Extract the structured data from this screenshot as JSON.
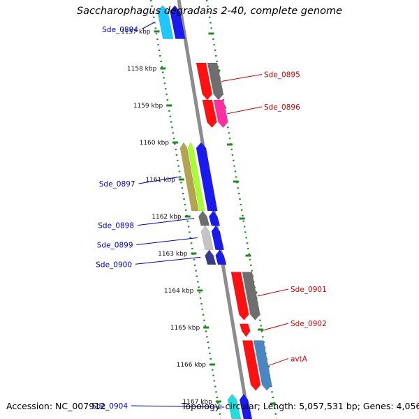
{
  "title": "Saccharophagus degradans 2-40, complete genome",
  "footer": {
    "accession": "Accession: NC_007912",
    "topology": "Topology: circular; Length: 5,057,531 bp; Genes: 4,056"
  },
  "colors": {
    "backbone": "#8c8c8c",
    "tick": "#1f8a1f",
    "forward_label": "#0000cc",
    "reverse_label": "#cc0000"
  },
  "ticks": [
    {
      "label": "1157 kbp",
      "kbp": 1157
    },
    {
      "label": "1158 kbp",
      "kbp": 1158
    },
    {
      "label": "1159 kbp",
      "kbp": 1159
    },
    {
      "label": "1160 kbp",
      "kbp": 1160
    },
    {
      "label": "1161 kbp",
      "kbp": 1161
    },
    {
      "label": "1162 kbp",
      "kbp": 1162
    },
    {
      "label": "1163 kbp",
      "kbp": 1163
    },
    {
      "label": "1164 kbp",
      "kbp": 1164
    },
    {
      "label": "1165 kbp",
      "kbp": 1165
    },
    {
      "label": "1166 kbp",
      "kbp": 1166
    },
    {
      "label": "1167 kbp",
      "kbp": 1167
    }
  ],
  "genes": [
    {
      "name": "Sde_0894",
      "strand": "forward",
      "start_kbp": 1156.3,
      "end_kbp": 1157.2
    },
    {
      "name": "Sde_0895",
      "strand": "reverse",
      "start_kbp": 1157.85,
      "end_kbp": 1158.85
    },
    {
      "name": "Sde_0896",
      "strand": "reverse",
      "start_kbp": 1158.85,
      "end_kbp": 1159.6
    },
    {
      "name": "Sde_0897",
      "strand": "forward",
      "start_kbp": 1160.0,
      "end_kbp": 1161.85
    },
    {
      "name": "Sde_0898",
      "strand": "forward",
      "start_kbp": 1161.85,
      "end_kbp": 1162.25
    },
    {
      "name": "Sde_0899",
      "strand": "forward",
      "start_kbp": 1162.25,
      "end_kbp": 1162.9
    },
    {
      "name": "Sde_0900",
      "strand": "forward",
      "start_kbp": 1162.9,
      "end_kbp": 1163.3
    },
    {
      "name": "Sde_0901",
      "strand": "reverse",
      "start_kbp": 1163.5,
      "end_kbp": 1164.8
    },
    {
      "name": "Sde_0902",
      "strand": "reverse",
      "start_kbp": 1164.9,
      "end_kbp": 1165.25
    },
    {
      "name": "avtA",
      "strand": "reverse",
      "start_kbp": 1165.35,
      "end_kbp": 1166.7
    },
    {
      "name": "Sde_0904",
      "strand": "forward",
      "start_kbp": 1166.8,
      "end_kbp": 1167.5
    }
  ]
}
